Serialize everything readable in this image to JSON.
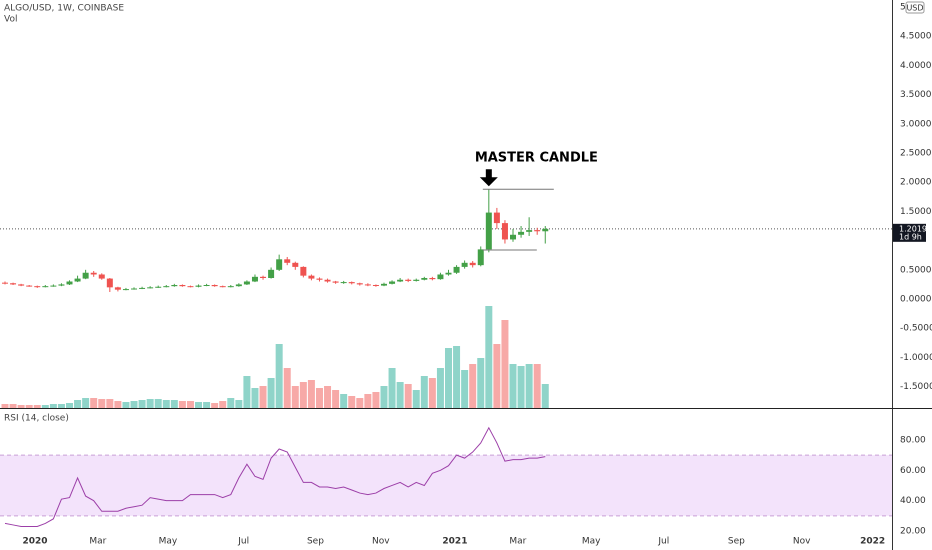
{
  "chart_data": [
    {
      "type": "candlestick",
      "title": "ALGO/USD, 1W, COINBASE",
      "unit": "USD",
      "open": [
        0.28,
        0.27,
        0.25,
        0.23,
        0.22,
        0.21,
        0.22,
        0.23,
        0.25,
        0.3,
        0.35,
        0.45,
        0.42,
        0.35,
        0.2,
        0.16,
        0.17,
        0.18,
        0.19,
        0.2,
        0.21,
        0.22,
        0.24,
        0.22,
        0.21,
        0.23,
        0.24,
        0.22,
        0.21,
        0.22,
        0.25,
        0.3,
        0.38,
        0.36,
        0.5,
        0.68,
        0.62,
        0.55,
        0.4,
        0.35,
        0.33,
        0.3,
        0.28,
        0.29,
        0.27,
        0.25,
        0.24,
        0.23,
        0.26,
        0.3,
        0.33,
        0.31,
        0.33,
        0.36,
        0.34,
        0.42,
        0.45,
        0.55,
        0.62,
        0.58,
        0.85,
        1.48,
        1.3,
        1.02,
        1.1,
        1.15,
        1.18,
        1.16
      ],
      "high": [
        0.3,
        0.28,
        0.26,
        0.24,
        0.23,
        0.24,
        0.25,
        0.27,
        0.32,
        0.4,
        0.5,
        0.48,
        0.44,
        0.36,
        0.21,
        0.19,
        0.2,
        0.21,
        0.22,
        0.23,
        0.24,
        0.26,
        0.25,
        0.23,
        0.25,
        0.26,
        0.25,
        0.23,
        0.24,
        0.27,
        0.32,
        0.42,
        0.4,
        0.54,
        0.76,
        0.72,
        0.64,
        0.56,
        0.42,
        0.37,
        0.35,
        0.31,
        0.31,
        0.3,
        0.28,
        0.27,
        0.25,
        0.28,
        0.32,
        0.36,
        0.35,
        0.35,
        0.38,
        0.38,
        0.45,
        0.5,
        0.58,
        0.66,
        0.65,
        0.9,
        1.88,
        1.56,
        1.35,
        1.2,
        1.25,
        1.4,
        1.22,
        1.25
      ],
      "low": [
        0.25,
        0.24,
        0.22,
        0.21,
        0.19,
        0.2,
        0.21,
        0.22,
        0.24,
        0.29,
        0.34,
        0.38,
        0.33,
        0.12,
        0.13,
        0.15,
        0.16,
        0.17,
        0.18,
        0.19,
        0.2,
        0.21,
        0.21,
        0.2,
        0.2,
        0.22,
        0.21,
        0.2,
        0.2,
        0.21,
        0.24,
        0.29,
        0.33,
        0.35,
        0.48,
        0.58,
        0.5,
        0.37,
        0.32,
        0.3,
        0.28,
        0.26,
        0.26,
        0.25,
        0.23,
        0.22,
        0.21,
        0.22,
        0.25,
        0.29,
        0.29,
        0.3,
        0.32,
        0.32,
        0.33,
        0.4,
        0.43,
        0.52,
        0.54,
        0.56,
        0.8,
        1.2,
        0.95,
        0.98,
        1.05,
        1.08,
        1.1,
        0.95
      ],
      "close": [
        0.27,
        0.25,
        0.23,
        0.22,
        0.21,
        0.22,
        0.23,
        0.25,
        0.3,
        0.35,
        0.45,
        0.42,
        0.35,
        0.2,
        0.16,
        0.17,
        0.18,
        0.19,
        0.2,
        0.21,
        0.22,
        0.24,
        0.22,
        0.21,
        0.23,
        0.24,
        0.22,
        0.21,
        0.22,
        0.25,
        0.3,
        0.38,
        0.36,
        0.5,
        0.68,
        0.62,
        0.55,
        0.4,
        0.35,
        0.33,
        0.3,
        0.28,
        0.29,
        0.27,
        0.25,
        0.24,
        0.23,
        0.26,
        0.3,
        0.33,
        0.31,
        0.33,
        0.36,
        0.34,
        0.42,
        0.45,
        0.55,
        0.62,
        0.58,
        0.85,
        1.48,
        1.3,
        1.02,
        1.1,
        1.15,
        1.18,
        1.16,
        1.2019
      ],
      "volume": {
        "name": "Vol",
        "ylim": [
          0,
          408
        ],
        "values": [
          4,
          4,
          3,
          3,
          3,
          3,
          4,
          4,
          5,
          8,
          10,
          10,
          9,
          9,
          7,
          6,
          7,
          8,
          9,
          9,
          8,
          8,
          7,
          7,
          6,
          6,
          5,
          7,
          10,
          8,
          32,
          20,
          22,
          30,
          64,
          40,
          22,
          26,
          28,
          20,
          22,
          18,
          14,
          12,
          10,
          14,
          16,
          22,
          40,
          26,
          24,
          18,
          32,
          30,
          40,
          60,
          62,
          38,
          44,
          50,
          102,
          64,
          88,
          44,
          42,
          44,
          44,
          24
        ],
        "up_color": "#8fd4c9",
        "down_color": "#f7a9a7"
      },
      "up_color": "#43a047",
      "down_color": "#ef5350",
      "ylim": [
        -1.866,
        5.12
      ],
      "yticks": [
        5,
        {
          "value": 4.5,
          "label": "4.5000"
        },
        {
          "value": 4,
          "label": "4.0000"
        },
        {
          "value": 3.5,
          "label": "3.5000"
        },
        {
          "value": 3,
          "label": "3.0000"
        },
        {
          "value": 2.5,
          "label": "2.5000"
        },
        {
          "value": 2,
          "label": "2.0000"
        },
        {
          "value": 1.5,
          "label": "1.5000"
        },
        {
          "value": 0.5,
          "label": "0.5000"
        },
        {
          "value": 0,
          "label": "0.0000"
        },
        {
          "value": -0.5,
          "label": "-0.5000"
        },
        {
          "value": -1,
          "label": "-1.0000"
        },
        {
          "value": -1.5,
          "label": "-1.5000"
        }
      ],
      "xlim": [
        -0.62,
        110
      ],
      "last_price_label": "1.2019",
      "countdown": "1d 9h",
      "annotation": {
        "text": "MASTER CANDLE",
        "levels": [
          1.88,
          0.84
        ]
      }
    },
    {
      "type": "line",
      "name": "RSI (14, close)",
      "color": "#9c3fa8",
      "values": [
        25,
        24,
        23,
        23,
        23,
        25,
        28,
        41,
        42,
        55,
        43,
        40,
        33,
        33,
        33,
        35,
        36,
        37,
        42,
        41,
        40,
        40,
        40,
        44,
        44,
        44,
        44,
        42,
        44,
        55,
        64,
        56,
        54,
        68,
        74,
        72,
        62,
        52,
        52,
        49,
        49,
        48,
        49,
        47,
        45,
        44,
        45,
        48,
        50,
        52,
        49,
        52,
        50,
        58,
        60,
        63,
        70,
        68,
        72,
        78,
        88,
        78,
        66,
        67,
        67,
        68,
        68,
        69
      ],
      "bands": [
        30,
        70
      ],
      "band_color": "#f3e3fb",
      "ylim": [
        7.5,
        99.7
      ],
      "yticks": [
        {
          "value": 80,
          "label": "80.00"
        },
        {
          "value": 60,
          "label": "60.00"
        },
        {
          "value": 40,
          "label": "40.00"
        },
        {
          "value": 20,
          "label": "20.00"
        }
      ],
      "xlim": [
        -0.62,
        110
      ],
      "xticks": [
        {
          "value": 3.72,
          "label": "2020"
        },
        {
          "value": 11.52,
          "label": "Mar"
        },
        {
          "value": 20.2,
          "label": "May"
        },
        {
          "value": 29.6,
          "label": "Jul"
        },
        {
          "value": 38.5,
          "label": "Sep"
        },
        {
          "value": 46.6,
          "label": "Nov"
        },
        {
          "value": 55.8,
          "label": "2021"
        },
        {
          "value": 63.6,
          "label": "Mar"
        },
        {
          "value": 72.7,
          "label": "May"
        },
        {
          "value": 81.7,
          "label": "Jul"
        },
        {
          "value": 90.7,
          "label": "Sep"
        },
        {
          "value": 98.8,
          "label": "Nov"
        },
        {
          "value": 107.6,
          "label": "2022"
        }
      ]
    }
  ]
}
